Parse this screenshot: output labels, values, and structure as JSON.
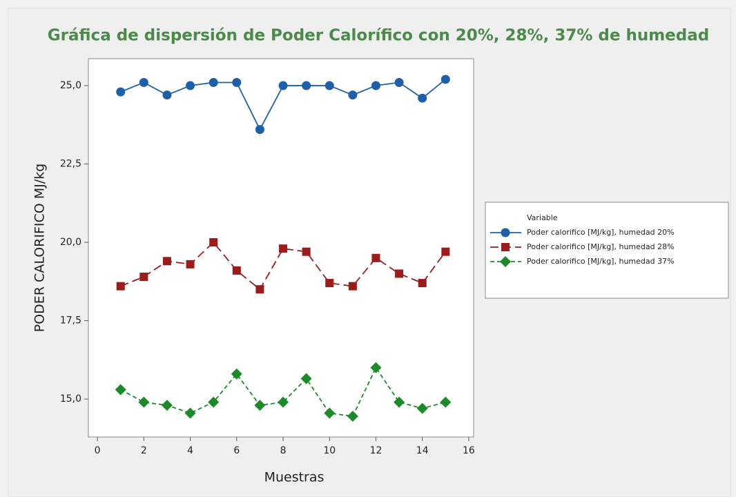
{
  "chart_data": {
    "type": "line",
    "title": "Gráfica de dispersión de Poder Calorífico con 20%, 28%, 37% de humedad",
    "x_label": "Muestras",
    "y_label": "PODER CALORIFICO MJ/kg",
    "x": [
      1,
      2,
      3,
      4,
      5,
      6,
      7,
      8,
      9,
      10,
      11,
      12,
      13,
      14,
      15
    ],
    "series": [
      {
        "name": "Poder calorifico [MJ/kg], humedad 20%",
        "color": "#1f5fa8",
        "marker": "circle",
        "line_style": "solid",
        "values": [
          24.8,
          25.1,
          24.7,
          25.0,
          25.1,
          25.1,
          23.6,
          25.0,
          25.0,
          25.0,
          24.7,
          25.0,
          25.1,
          24.6,
          25.2
        ]
      },
      {
        "name": "Poder calorifico [MJ/kg], humedad 28%",
        "color": "#9b1c1c",
        "marker": "square",
        "line_style": "longdash",
        "values": [
          18.6,
          18.9,
          19.4,
          19.3,
          20.0,
          19.1,
          18.5,
          19.8,
          19.7,
          18.7,
          18.6,
          19.5,
          19.0,
          18.7,
          19.7
        ]
      },
      {
        "name": "Poder calorifico [MJ/kg], humedad 37%",
        "color": "#1d8a2a",
        "marker": "diamond",
        "line_style": "dash",
        "values": [
          15.3,
          14.9,
          14.8,
          14.55,
          14.9,
          15.8,
          14.8,
          14.9,
          15.65,
          14.55,
          14.45,
          16.0,
          14.9,
          14.7,
          14.9
        ]
      }
    ],
    "legend_title": "Variable",
    "legend_position": "right",
    "xlim": [
      -0.39,
      16.21
    ],
    "xticks": [
      0,
      2,
      4,
      6,
      8,
      10,
      12,
      14,
      16
    ],
    "ylim": [
      13.79,
      25.86
    ],
    "yticks": [
      {
        "value": 15,
        "label": "15,0"
      },
      {
        "value": 17.5,
        "label": "17,5"
      },
      {
        "value": 20,
        "label": "20,0"
      },
      {
        "value": 22.5,
        "label": "22,5"
      },
      {
        "value": 25,
        "label": "25,0"
      }
    ],
    "grid": false
  }
}
